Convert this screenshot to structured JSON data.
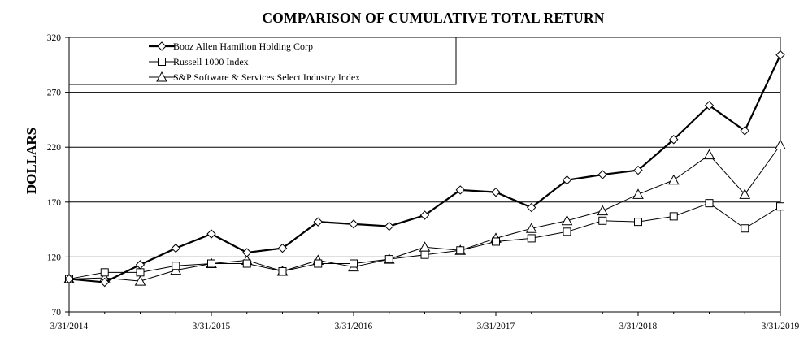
{
  "chart_data": {
    "type": "line",
    "title": "COMPARISON OF CUMULATIVE TOTAL RETURN",
    "xlabel": "",
    "ylabel": "DOLLARS",
    "ylim": [
      70,
      320
    ],
    "yticks": [
      70,
      120,
      170,
      220,
      270,
      320
    ],
    "xtick_labels": [
      "3/31/2014",
      "3/31/2015",
      "3/31/2016",
      "3/31/2017",
      "3/31/2018",
      "3/31/2019"
    ],
    "x_quarters": 20,
    "grid": "horizontal",
    "legend_position": "top-left",
    "series": [
      {
        "name": "Booz Allen Hamilton Holding Corp",
        "marker": "diamond",
        "color": "#000000",
        "line_width": "thick",
        "values": [
          100,
          97,
          113,
          128,
          141,
          124,
          128,
          152,
          150,
          148,
          158,
          181,
          179,
          165,
          190,
          195,
          199,
          227,
          258,
          235,
          304
        ]
      },
      {
        "name": "Russell 1000 Index",
        "marker": "square",
        "color": "#000000",
        "line_width": "thin",
        "values": [
          100,
          106,
          106,
          112,
          114,
          114,
          107,
          114,
          114,
          118,
          122,
          126,
          134,
          137,
          143,
          153,
          152,
          157,
          169,
          146,
          166
        ]
      },
      {
        "name": "S&P Software & Services Select Industry Index",
        "marker": "triangle",
        "color": "#000000",
        "line_width": "thin",
        "values": [
          100,
          101,
          98,
          108,
          114,
          117,
          107,
          117,
          111,
          118,
          129,
          126,
          137,
          146,
          153,
          162,
          177,
          190,
          213,
          177,
          222
        ]
      }
    ]
  }
}
